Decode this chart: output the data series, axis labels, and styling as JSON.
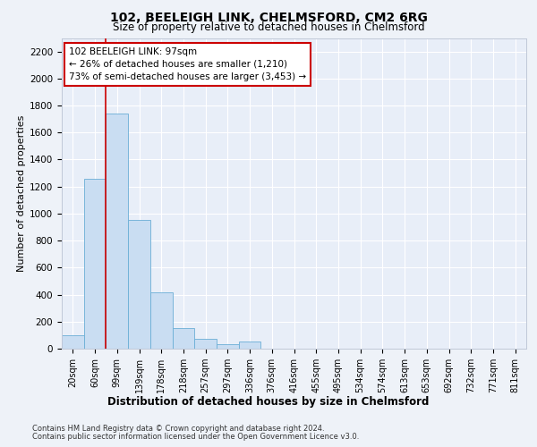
{
  "title1": "102, BEELEIGH LINK, CHELMSFORD, CM2 6RG",
  "title2": "Size of property relative to detached houses in Chelmsford",
  "xlabel": "Distribution of detached houses by size in Chelmsford",
  "ylabel": "Number of detached properties",
  "categories": [
    "20sqm",
    "60sqm",
    "99sqm",
    "139sqm",
    "178sqm",
    "218sqm",
    "257sqm",
    "297sqm",
    "336sqm",
    "376sqm",
    "416sqm",
    "455sqm",
    "495sqm",
    "534sqm",
    "574sqm",
    "613sqm",
    "653sqm",
    "692sqm",
    "732sqm",
    "771sqm",
    "811sqm"
  ],
  "values": [
    100,
    1260,
    1740,
    950,
    415,
    150,
    70,
    35,
    50,
    0,
    0,
    0,
    0,
    0,
    0,
    0,
    0,
    0,
    0,
    0,
    0
  ],
  "bar_color": "#c9ddf2",
  "bar_edge_color": "#6baed6",
  "red_line_index": 2,
  "annotation_line1": "102 BEELEIGH LINK: 97sqm",
  "annotation_line2": "← 26% of detached houses are smaller (1,210)",
  "annotation_line3": "73% of semi-detached houses are larger (3,453) →",
  "ylim": [
    0,
    2300
  ],
  "yticks": [
    0,
    200,
    400,
    600,
    800,
    1000,
    1200,
    1400,
    1600,
    1800,
    2000,
    2200
  ],
  "footer1": "Contains HM Land Registry data © Crown copyright and database right 2024.",
  "footer2": "Contains public sector information licensed under the Open Government Licence v3.0.",
  "bg_color": "#eef2f8",
  "plot_bg": "#e8eef8",
  "grid_color": "#ffffff",
  "spine_color": "#c0c8d8"
}
